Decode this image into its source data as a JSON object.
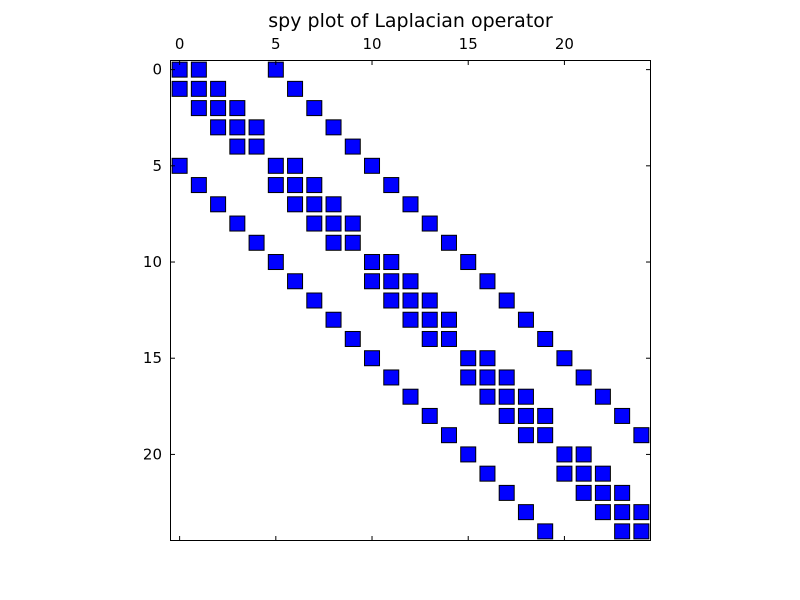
{
  "chart_data": {
    "type": "spy",
    "title": "spy plot of Laplacian operator",
    "rows": 25,
    "cols": 25,
    "x_ticks": [
      "0",
      "5",
      "10",
      "15",
      "20"
    ],
    "y_ticks": [
      "0",
      "5",
      "10",
      "15",
      "20"
    ],
    "x_tick_values": [
      0,
      5,
      10,
      15,
      20
    ],
    "y_tick_values": [
      0,
      5,
      10,
      15,
      20
    ],
    "xlim": [
      -0.5,
      24.5
    ],
    "ylim": [
      -0.5,
      24.5
    ],
    "x_axis_position": "top",
    "y_axis_inverted": true,
    "grid": false,
    "marker": "square",
    "marker_color": "#0000ff",
    "nonzeros": [
      [
        0,
        0
      ],
      [
        0,
        1
      ],
      [
        0,
        5
      ],
      [
        1,
        0
      ],
      [
        1,
        1
      ],
      [
        1,
        2
      ],
      [
        1,
        6
      ],
      [
        2,
        1
      ],
      [
        2,
        2
      ],
      [
        2,
        3
      ],
      [
        2,
        7
      ],
      [
        3,
        2
      ],
      [
        3,
        3
      ],
      [
        3,
        4
      ],
      [
        3,
        8
      ],
      [
        4,
        3
      ],
      [
        4,
        4
      ],
      [
        4,
        9
      ],
      [
        5,
        0
      ],
      [
        5,
        5
      ],
      [
        5,
        6
      ],
      [
        5,
        10
      ],
      [
        6,
        1
      ],
      [
        6,
        5
      ],
      [
        6,
        6
      ],
      [
        6,
        7
      ],
      [
        6,
        11
      ],
      [
        7,
        2
      ],
      [
        7,
        6
      ],
      [
        7,
        7
      ],
      [
        7,
        8
      ],
      [
        7,
        12
      ],
      [
        8,
        3
      ],
      [
        8,
        7
      ],
      [
        8,
        8
      ],
      [
        8,
        9
      ],
      [
        8,
        13
      ],
      [
        9,
        4
      ],
      [
        9,
        8
      ],
      [
        9,
        9
      ],
      [
        9,
        14
      ],
      [
        10,
        5
      ],
      [
        10,
        10
      ],
      [
        10,
        11
      ],
      [
        10,
        15
      ],
      [
        11,
        6
      ],
      [
        11,
        10
      ],
      [
        11,
        11
      ],
      [
        11,
        12
      ],
      [
        11,
        16
      ],
      [
        12,
        7
      ],
      [
        12,
        11
      ],
      [
        12,
        12
      ],
      [
        12,
        13
      ],
      [
        12,
        17
      ],
      [
        13,
        8
      ],
      [
        13,
        12
      ],
      [
        13,
        13
      ],
      [
        13,
        14
      ],
      [
        13,
        18
      ],
      [
        14,
        9
      ],
      [
        14,
        13
      ],
      [
        14,
        14
      ],
      [
        14,
        19
      ],
      [
        15,
        10
      ],
      [
        15,
        15
      ],
      [
        15,
        16
      ],
      [
        15,
        20
      ],
      [
        16,
        11
      ],
      [
        16,
        15
      ],
      [
        16,
        16
      ],
      [
        16,
        17
      ],
      [
        16,
        21
      ],
      [
        17,
        12
      ],
      [
        17,
        16
      ],
      [
        17,
        17
      ],
      [
        17,
        18
      ],
      [
        17,
        22
      ],
      [
        18,
        13
      ],
      [
        18,
        17
      ],
      [
        18,
        18
      ],
      [
        18,
        19
      ],
      [
        18,
        23
      ],
      [
        19,
        14
      ],
      [
        19,
        18
      ],
      [
        19,
        19
      ],
      [
        19,
        24
      ],
      [
        20,
        15
      ],
      [
        20,
        20
      ],
      [
        20,
        21
      ],
      [
        21,
        16
      ],
      [
        21,
        20
      ],
      [
        21,
        21
      ],
      [
        21,
        22
      ],
      [
        22,
        17
      ],
      [
        22,
        21
      ],
      [
        22,
        22
      ],
      [
        22,
        23
      ],
      [
        23,
        18
      ],
      [
        23,
        22
      ],
      [
        23,
        23
      ],
      [
        23,
        24
      ],
      [
        24,
        19
      ],
      [
        24,
        23
      ],
      [
        24,
        24
      ]
    ]
  }
}
